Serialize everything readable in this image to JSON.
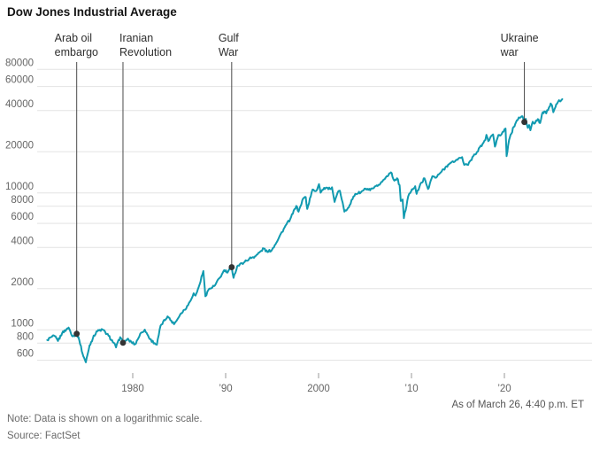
{
  "header": {
    "title": "Dow Jones Industrial Average"
  },
  "footer": {
    "as_of": "As of March 26, 4:40 p.m. ET",
    "note": "Note: Data is shown on a logarithmic scale.",
    "source": "Source: FactSet"
  },
  "colors": {
    "line": "#119ab0",
    "grid": "#e3e3e3",
    "axis_text": "#666666",
    "tick": "#999999",
    "event_line": "#4a4a4a",
    "marker": "#333333",
    "title_text": "#141414"
  },
  "chart_data": {
    "type": "line",
    "title": "Dow Jones Industrial Average",
    "xlabel": "",
    "ylabel": "",
    "log_scale": true,
    "grid": "horizontal",
    "x_range": [
      1970.8,
      2026.5
    ],
    "ylim": [
      560,
      95000
    ],
    "y_ticks": [
      80000,
      60000,
      40000,
      20000,
      10000,
      8000,
      6000,
      4000,
      2000,
      1000,
      800,
      600
    ],
    "x_ticks": [
      {
        "year": 1980,
        "label": "1980"
      },
      {
        "year": 1990,
        "label": "’90"
      },
      {
        "year": 2000,
        "label": "2000"
      },
      {
        "year": 2010,
        "label": "’10"
      },
      {
        "year": 2020,
        "label": "’20"
      }
    ],
    "events": [
      {
        "label_lines": [
          "Arab oil",
          "embargo"
        ],
        "year": 1973.97,
        "value": 937
      },
      {
        "label_lines": [
          "Iranian",
          "Revolution"
        ],
        "year": 1978.95,
        "value": 805
      },
      {
        "label_lines": [
          "Gulf",
          "War"
        ],
        "year": 1990.65,
        "value": 2870
      },
      {
        "label_lines": [
          "Ukraine",
          "war"
        ],
        "year": 2022.15,
        "value": 33000
      }
    ],
    "series": [
      {
        "name": "Dow Jones Industrial Average",
        "points": [
          [
            1970.8,
            842
          ],
          [
            1971.2,
            885
          ],
          [
            1971.6,
            900
          ],
          [
            1971.95,
            830
          ],
          [
            1972.4,
            945
          ],
          [
            1972.95,
            1025
          ],
          [
            1973.1,
            1040
          ],
          [
            1973.55,
            895
          ],
          [
            1973.97,
            937
          ],
          [
            1974.25,
            840
          ],
          [
            1974.6,
            670
          ],
          [
            1974.95,
            580
          ],
          [
            1975.35,
            770
          ],
          [
            1975.7,
            865
          ],
          [
            1976.1,
            975
          ],
          [
            1976.75,
            1005
          ],
          [
            1977.4,
            905
          ],
          [
            1977.95,
            805
          ],
          [
            1978.2,
            745
          ],
          [
            1978.65,
            885
          ],
          [
            1978.95,
            805
          ],
          [
            1979.4,
            855
          ],
          [
            1979.85,
            815
          ],
          [
            1980.25,
            785
          ],
          [
            1980.9,
            955
          ],
          [
            1981.3,
            1005
          ],
          [
            1981.85,
            855
          ],
          [
            1982.35,
            800
          ],
          [
            1982.6,
            780
          ],
          [
            1983.0,
            1075
          ],
          [
            1983.75,
            1255
          ],
          [
            1984.45,
            1100
          ],
          [
            1985.1,
            1290
          ],
          [
            1985.95,
            1510
          ],
          [
            1986.55,
            1850
          ],
          [
            1986.75,
            1780
          ],
          [
            1987.1,
            2050
          ],
          [
            1987.6,
            2690
          ],
          [
            1987.82,
            1760
          ],
          [
            1988.15,
            1960
          ],
          [
            1988.85,
            2110
          ],
          [
            1989.6,
            2550
          ],
          [
            1989.85,
            2730
          ],
          [
            1990.2,
            2620
          ],
          [
            1990.65,
            2870
          ],
          [
            1990.85,
            2400
          ],
          [
            1991.25,
            2920
          ],
          [
            1991.95,
            3100
          ],
          [
            1992.55,
            3320
          ],
          [
            1993.25,
            3470
          ],
          [
            1994.1,
            3930
          ],
          [
            1994.5,
            3700
          ],
          [
            1995.0,
            3860
          ],
          [
            1995.75,
            4750
          ],
          [
            1996.35,
            5620
          ],
          [
            1996.95,
            6450
          ],
          [
            1997.6,
            8050
          ],
          [
            1997.85,
            7300
          ],
          [
            1998.35,
            9150
          ],
          [
            1998.62,
            9330
          ],
          [
            1998.78,
            7650
          ],
          [
            1999.35,
            10600
          ],
          [
            1999.75,
            10350
          ],
          [
            2000.05,
            11600
          ],
          [
            2000.22,
            10050
          ],
          [
            2000.6,
            10900
          ],
          [
            2001.05,
            10650
          ],
          [
            2001.45,
            11000
          ],
          [
            2001.72,
            8600
          ],
          [
            2002.05,
            10050
          ],
          [
            2002.3,
            10400
          ],
          [
            2002.78,
            7300
          ],
          [
            2003.15,
            7750
          ],
          [
            2003.95,
            9850
          ],
          [
            2004.55,
            10100
          ],
          [
            2005.05,
            10750
          ],
          [
            2005.55,
            10450
          ],
          [
            2006.35,
            11250
          ],
          [
            2007.05,
            12550
          ],
          [
            2007.6,
            13900
          ],
          [
            2007.78,
            14160
          ],
          [
            2008.15,
            12300
          ],
          [
            2008.45,
            12800
          ],
          [
            2008.72,
            11400
          ],
          [
            2008.85,
            8750
          ],
          [
            2009.05,
            8950
          ],
          [
            2009.18,
            6550
          ],
          [
            2009.65,
            9450
          ],
          [
            2010.05,
            10650
          ],
          [
            2010.4,
            11200
          ],
          [
            2010.55,
            9850
          ],
          [
            2011.05,
            11900
          ],
          [
            2011.4,
            12800
          ],
          [
            2011.78,
            10700
          ],
          [
            2012.25,
            13250
          ],
          [
            2012.65,
            12950
          ],
          [
            2013.05,
            13900
          ],
          [
            2013.95,
            16100
          ],
          [
            2014.75,
            17250
          ],
          [
            2015.05,
            17850
          ],
          [
            2015.45,
            18300
          ],
          [
            2015.68,
            16050
          ],
          [
            2016.1,
            16050
          ],
          [
            2016.65,
            18550
          ],
          [
            2017.05,
            19950
          ],
          [
            2017.95,
            24400
          ],
          [
            2018.07,
            26600
          ],
          [
            2018.27,
            23900
          ],
          [
            2018.78,
            26800
          ],
          [
            2018.98,
            21800
          ],
          [
            2019.35,
            26450
          ],
          [
            2019.7,
            26950
          ],
          [
            2020.12,
            29550
          ],
          [
            2020.24,
            18600
          ],
          [
            2020.5,
            24400
          ],
          [
            2020.75,
            27100
          ],
          [
            2021.0,
            30400
          ],
          [
            2021.35,
            34000
          ],
          [
            2021.65,
            35450
          ],
          [
            2021.95,
            36340
          ],
          [
            2022.15,
            33000
          ],
          [
            2022.3,
            34800
          ],
          [
            2022.52,
            29900
          ],
          [
            2022.67,
            31300
          ],
          [
            2022.8,
            28730
          ],
          [
            2023.05,
            33150
          ],
          [
            2023.2,
            32050
          ],
          [
            2023.6,
            34650
          ],
          [
            2023.85,
            32450
          ],
          [
            2024.05,
            37700
          ],
          [
            2024.3,
            39400
          ],
          [
            2024.5,
            38100
          ],
          [
            2024.8,
            42200
          ],
          [
            2024.98,
            45050
          ],
          [
            2025.12,
            43600
          ],
          [
            2025.27,
            38900
          ],
          [
            2025.5,
            42600
          ],
          [
            2025.75,
            46100
          ],
          [
            2025.88,
            47600
          ],
          [
            2026.02,
            46600
          ],
          [
            2026.16,
            47900
          ],
          [
            2026.23,
            48500
          ]
        ]
      }
    ]
  }
}
